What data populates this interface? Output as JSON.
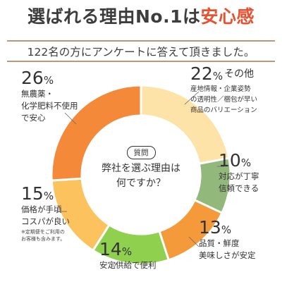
{
  "header": {
    "title_prefix": "選ばれる理由No.1は",
    "title_highlight": "安心感",
    "subtitle": "122名の方にアンケートに答えて頂きました。"
  },
  "center": {
    "badge": "質問",
    "question_line1": "弊社を選ぶ理由は",
    "question_line2": "何ですか？"
  },
  "chart_data": {
    "type": "pie",
    "unit": "%",
    "slices": [
      {
        "value": 22,
        "percent_text": "22",
        "suffix": "その他",
        "desc": [
          "産地情報・企業姿勢",
          "の透明性／梱包が早い",
          "商品のバリエーション"
        ],
        "color": "#fde3a7"
      },
      {
        "value": 10,
        "percent_text": "10",
        "desc": [
          "対応が丁寧",
          "信頼できる"
        ],
        "color": "#93b87c"
      },
      {
        "value": 13,
        "percent_text": "13",
        "desc": [
          "品質・鮮度",
          "美味しさが安定"
        ],
        "color": "#f59a3a"
      },
      {
        "value": 14,
        "percent_text": "14",
        "desc": [
          "安定供給で便利"
        ],
        "color": "#8fd14f"
      },
      {
        "value": 15,
        "percent_text": "15",
        "desc": [
          "価格が手頃",
          "コスパが良い"
        ],
        "note": [
          "※定期便をご利用の",
          "お客様も含みます。"
        ],
        "color": "#fbc25e"
      },
      {
        "value": 26,
        "percent_text": "26",
        "desc": [
          "無農薬・",
          "化学肥料不使用",
          "で安心"
        ],
        "color": "#f5893a"
      }
    ]
  }
}
